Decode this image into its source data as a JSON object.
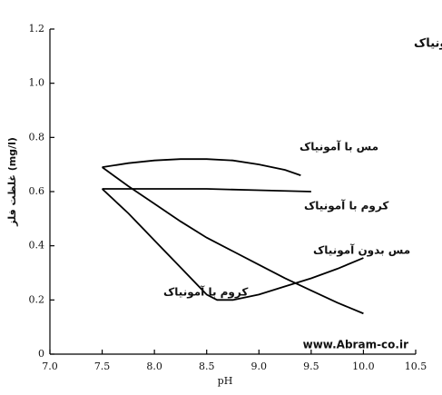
{
  "chart_data": {
    "type": "line",
    "title": "مقادیر مقایسه ای ph بهینه برای حذف فلزات با وبدون آمونیاک",
    "x_label": "pH",
    "y_label": "غلظت فلز (mg/l)",
    "watermark": "www.Abram-co.ir",
    "xlim": [
      7.0,
      10.5
    ],
    "ylim": [
      0,
      1.2
    ],
    "xticks": [
      {
        "value": 7.0,
        "label": "7.0"
      },
      7.5,
      {
        "value": 8.0,
        "label": "8.0"
      },
      8.5,
      {
        "value": 9.0,
        "label": "9.0"
      },
      9.5,
      {
        "value": 10.0,
        "label": "10.0"
      },
      10.5
    ],
    "yticks": [
      0,
      0.2,
      0.4,
      0.6,
      0.8,
      {
        "value": 1.0,
        "label": "1.0"
      },
      1.2
    ],
    "series": [
      {
        "name": "مس با آمونیاک",
        "color": "#000000",
        "x": [
          7.5,
          7.75,
          8.0,
          8.25,
          8.5,
          8.75,
          9.0,
          9.25,
          9.4
        ],
        "values": [
          0.69,
          0.705,
          0.715,
          0.72,
          0.72,
          0.715,
          0.7,
          0.68,
          0.66
        ]
      },
      {
        "name": "کروم با آمونیاک",
        "color": "#000000",
        "x": [
          7.5,
          8.0,
          8.5,
          9.0,
          9.5
        ],
        "values": [
          0.61,
          0.61,
          0.61,
          0.605,
          0.6
        ]
      },
      {
        "name": "مس بدون آمونیاک",
        "color": "#000000",
        "x": [
          7.5,
          7.75,
          8.0,
          8.25,
          8.5,
          8.75,
          9.0,
          9.25,
          9.5,
          9.75,
          10.0
        ],
        "values": [
          0.69,
          0.62,
          0.555,
          0.49,
          0.43,
          0.38,
          0.33,
          0.28,
          0.235,
          0.19,
          0.15
        ]
      },
      {
        "name": "کروم با آمونیاک",
        "color": "#000000",
        "x": [
          7.5,
          7.75,
          8.0,
          8.25,
          8.5,
          8.6,
          8.75,
          9.0,
          9.25,
          9.5,
          9.75,
          10.0
        ],
        "values": [
          0.61,
          0.52,
          0.42,
          0.32,
          0.22,
          0.2,
          0.2,
          0.22,
          0.25,
          0.28,
          0.315,
          0.355
        ]
      }
    ]
  }
}
